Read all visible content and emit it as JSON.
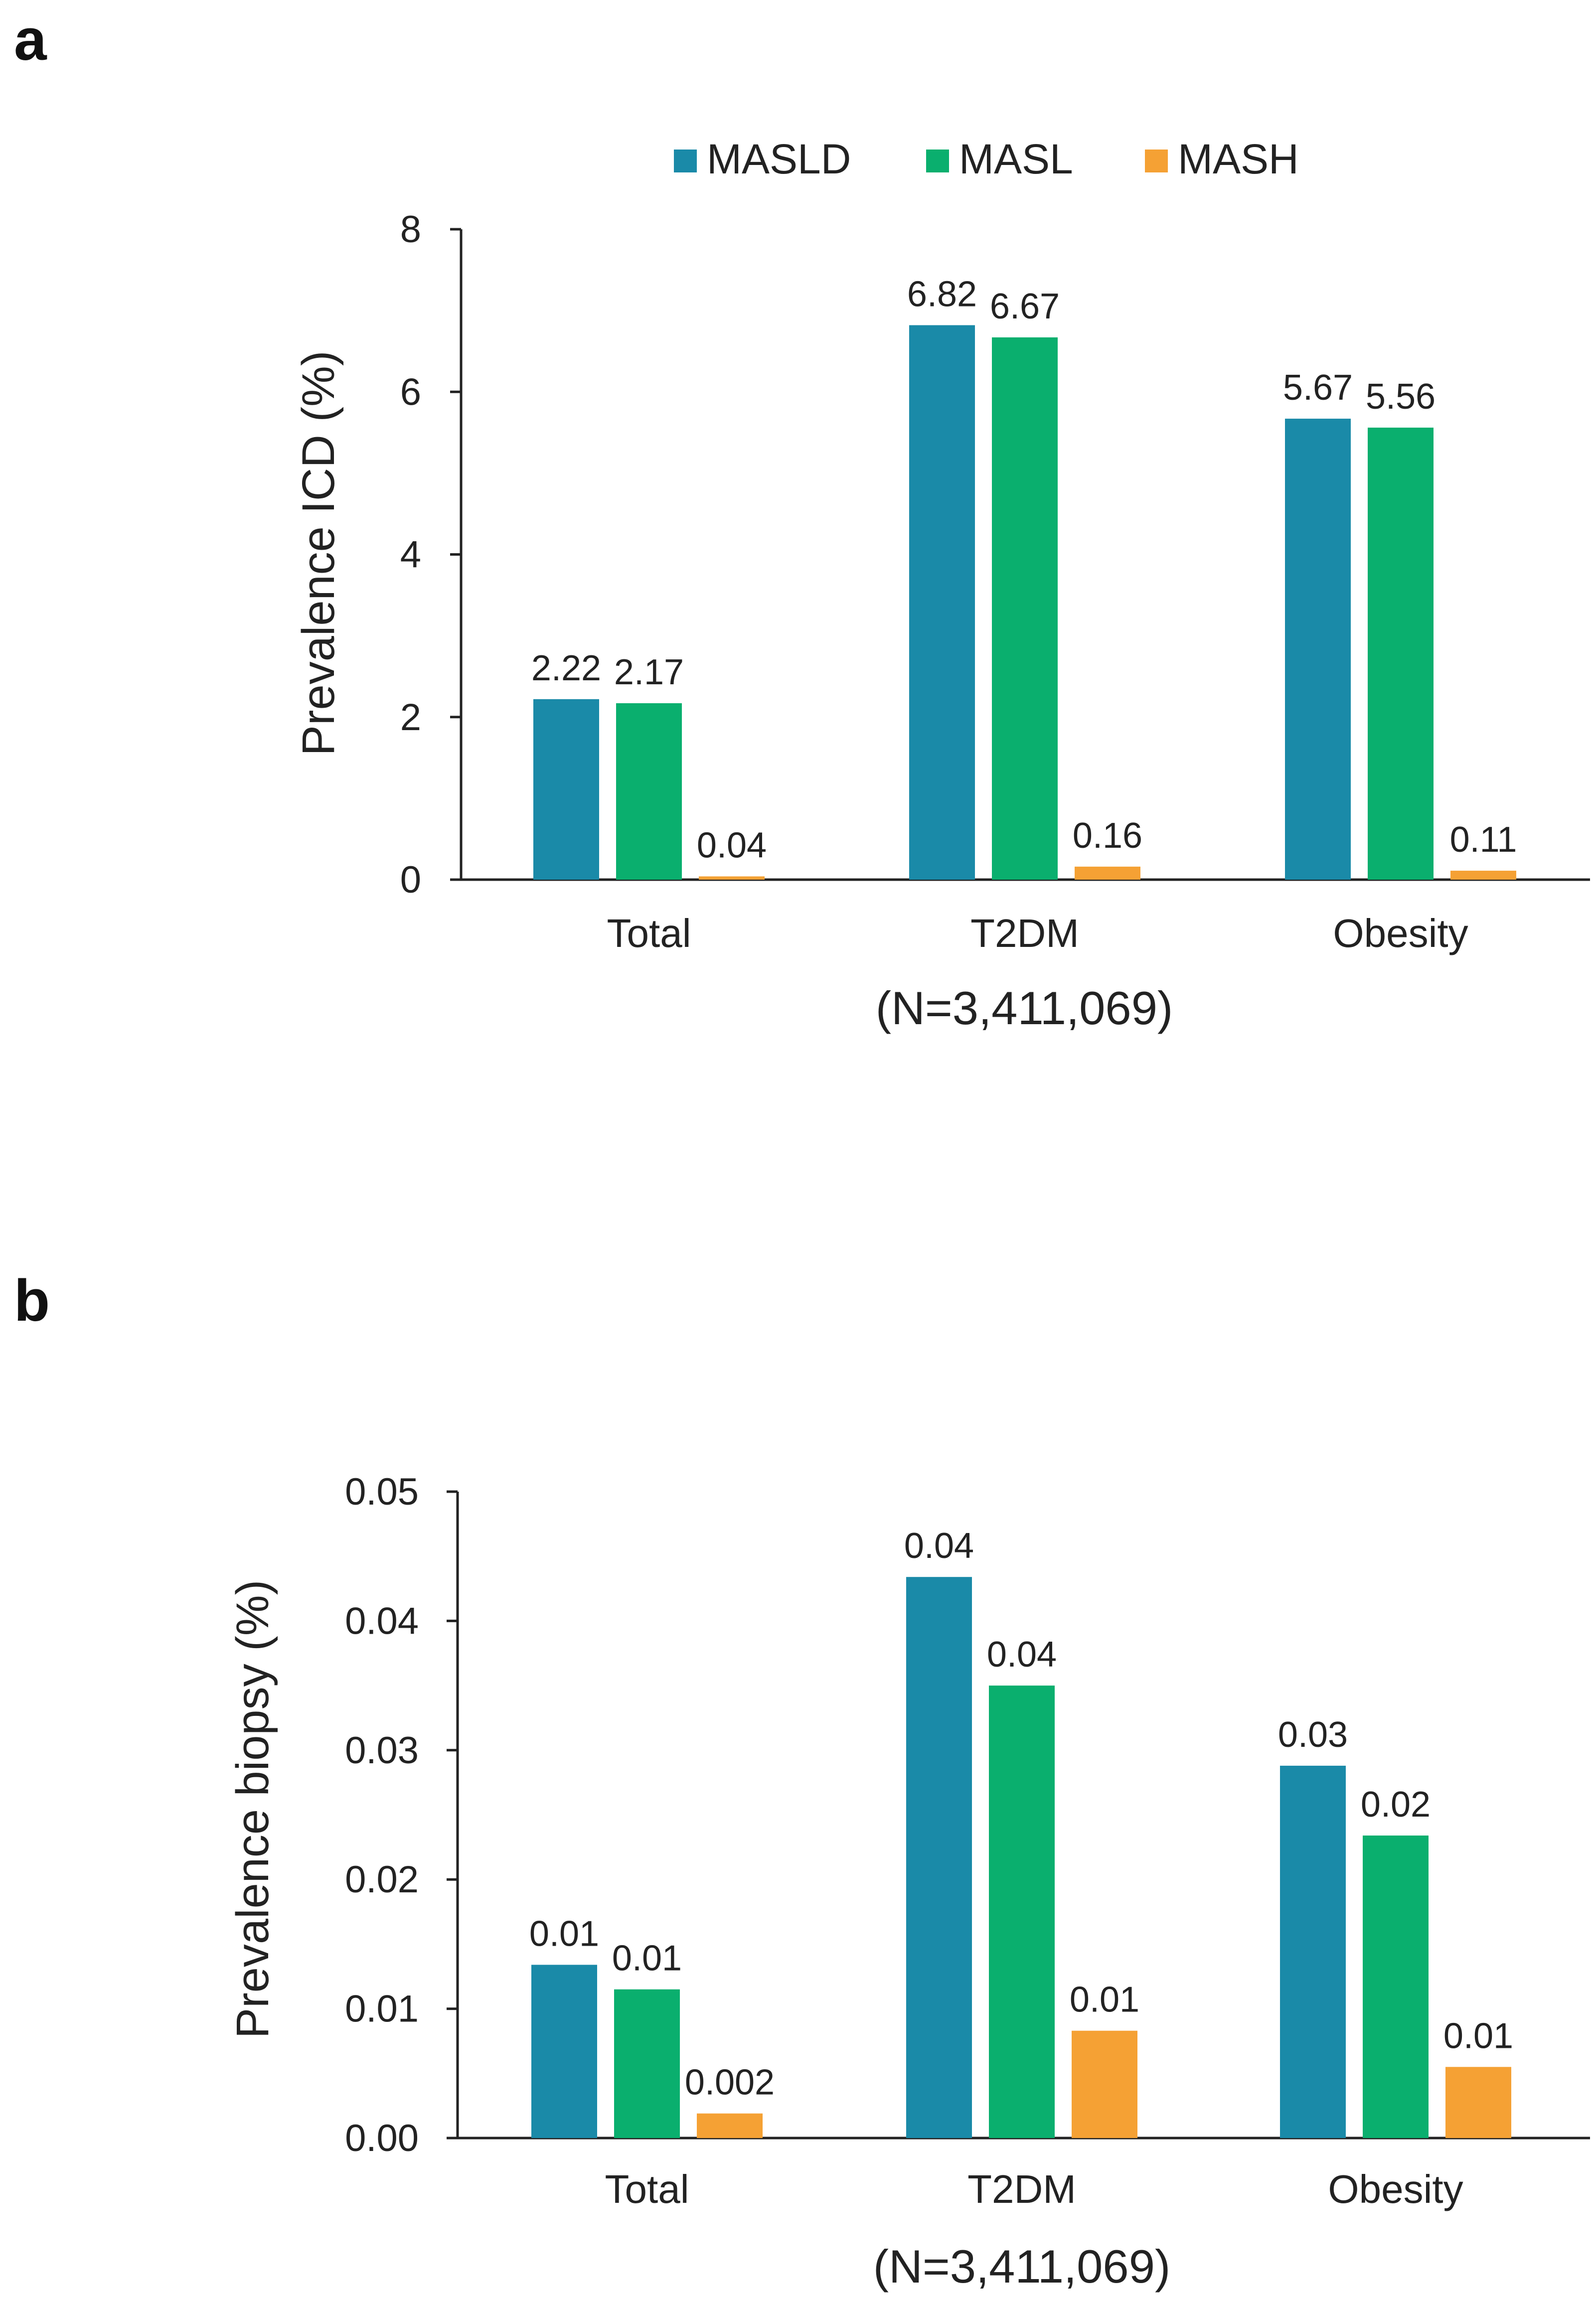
{
  "colors": {
    "MASLD": "#1a8aa8",
    "MASL": "#0aaf6e",
    "MASH": "#f5a134"
  },
  "legend": [
    "MASLD",
    "MASL",
    "MASH"
  ],
  "chart_data": [
    {
      "panel": "a",
      "type": "bar",
      "ylabel": "Prevalence ICD (%)",
      "xlabel": "(N=3,411,069)",
      "categories": [
        "Total",
        "T2DM",
        "Obesity"
      ],
      "ylim": [
        0,
        8
      ],
      "yticks": [
        "0",
        "2",
        "4",
        "6",
        "8"
      ],
      "series": [
        {
          "name": "MASLD",
          "values": [
            2.22,
            6.82,
            5.67
          ],
          "labels": [
            "2.22",
            "6.82",
            "5.67"
          ]
        },
        {
          "name": "MASL",
          "values": [
            2.17,
            6.67,
            5.56
          ],
          "labels": [
            "2.17",
            "6.67",
            "5.56"
          ]
        },
        {
          "name": "MASH",
          "values": [
            0.04,
            0.16,
            0.11
          ],
          "labels": [
            "0.04",
            "0.16",
            "0.11"
          ]
        }
      ]
    },
    {
      "panel": "b",
      "type": "bar",
      "ylabel": "Prevalence biopsy (%)",
      "xlabel": "(N=3,411,069)",
      "categories": [
        "Total",
        "T2DM",
        "Obesity"
      ],
      "ylim": [
        0,
        0.05
      ],
      "yticks": [
        "0.00",
        "0.01",
        "0.02",
        "0.03",
        "0.04",
        "0.05"
      ],
      "series": [
        {
          "name": "MASLD",
          "values": [
            0.0134,
            0.0434,
            0.0288
          ],
          "labels": [
            "0.01",
            "0.04",
            "0.03"
          ]
        },
        {
          "name": "MASL",
          "values": [
            0.0115,
            0.035,
            0.0234
          ],
          "labels": [
            "0.01",
            "0.04",
            "0.02"
          ]
        },
        {
          "name": "MASH",
          "values": [
            0.0019,
            0.0083,
            0.0055
          ],
          "labels": [
            "0.002",
            "0.01",
            "0.01"
          ]
        }
      ]
    }
  ]
}
